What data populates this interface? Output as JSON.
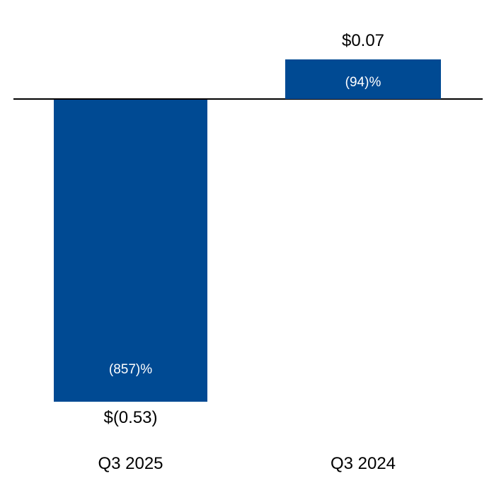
{
  "chart_data": {
    "type": "bar",
    "title": "",
    "categories": [
      "Q3 2025",
      "Q3 2024"
    ],
    "values": [
      -0.53,
      0.07
    ],
    "value_labels": [
      "$(0.53)",
      "$0.07"
    ],
    "percent_labels": [
      "(857)%",
      "(94)%"
    ],
    "bar_color": "#004A93",
    "axis_color": "#000000",
    "inside_label_color": "#FFFFFF",
    "outside_label_color": "#000000",
    "baseline": 0,
    "grid": false,
    "legend": false,
    "ylim": [
      -0.6,
      0.12
    ]
  }
}
